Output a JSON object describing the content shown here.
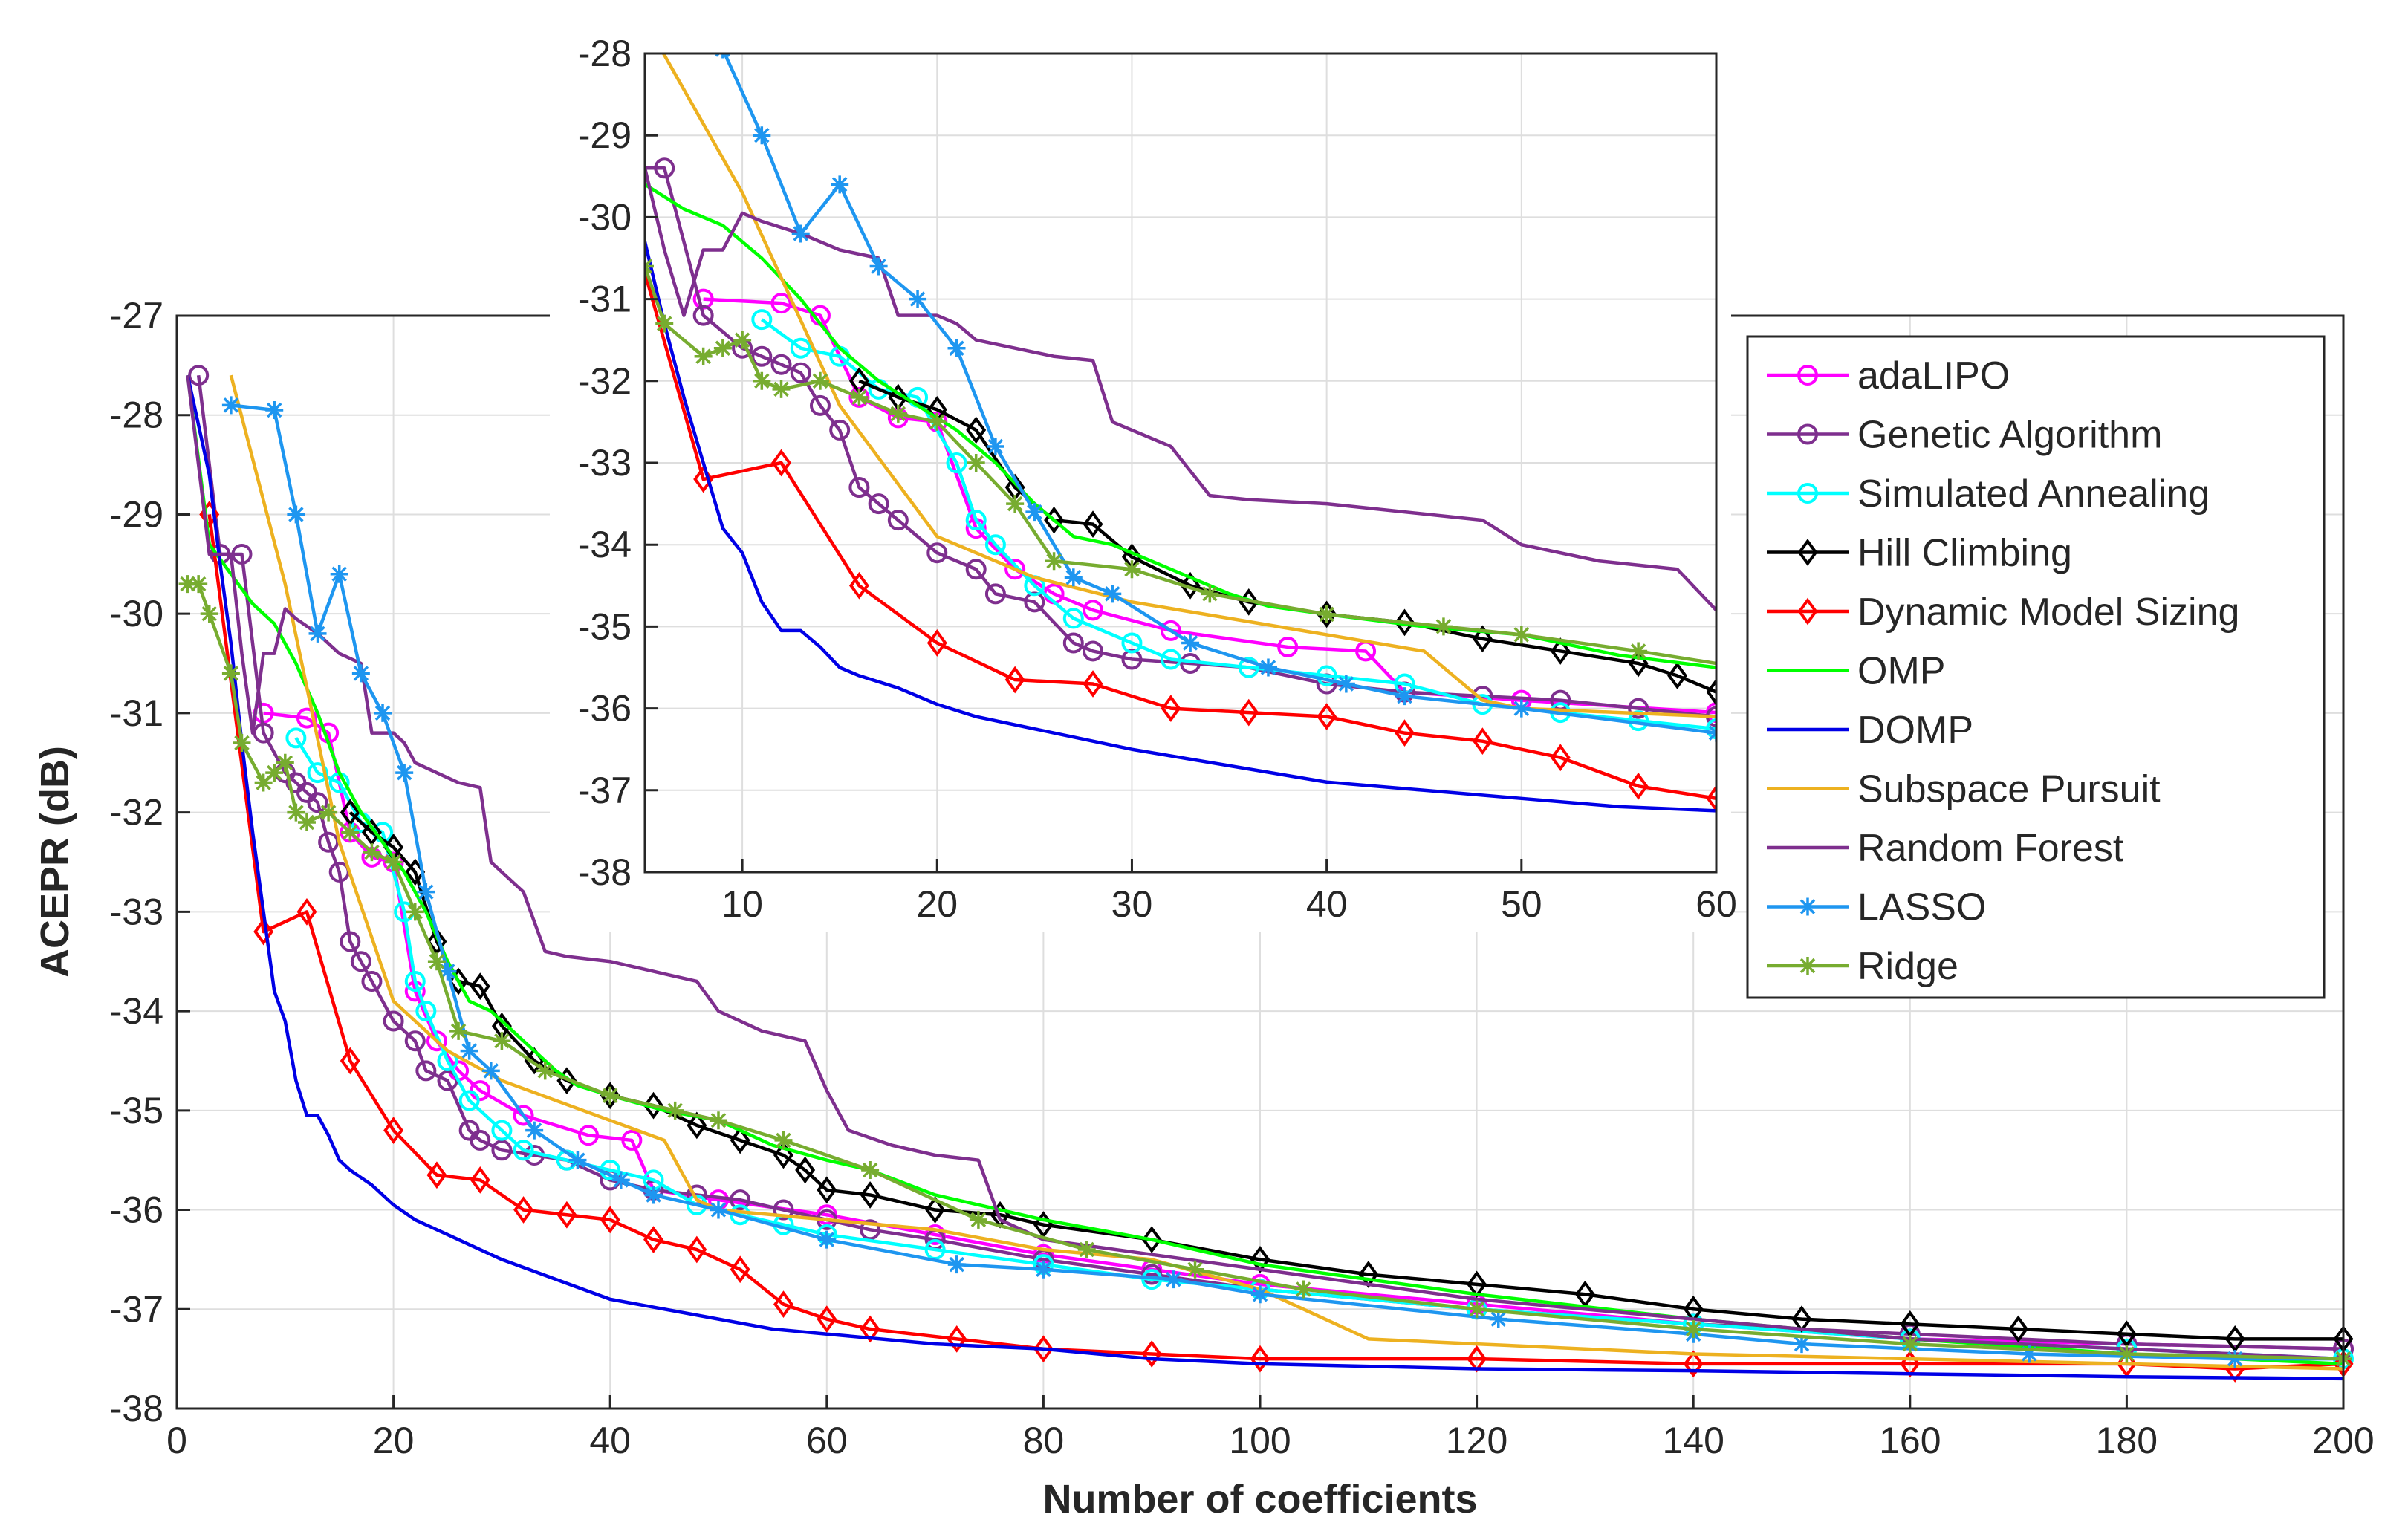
{
  "chart_data": [
    {
      "id": "main",
      "type": "line",
      "xlabel": "Number of coefficients",
      "ylabel": "ACEPR (dB)",
      "xlim": [
        0,
        200
      ],
      "ylim": [
        -38,
        -27
      ],
      "xticks": [
        0,
        20,
        40,
        60,
        80,
        100,
        120,
        140,
        160,
        180,
        200
      ],
      "yticks": [
        -27,
        -28,
        -29,
        -30,
        -31,
        -32,
        -33,
        -34,
        -35,
        -36,
        -37,
        -38
      ],
      "grid": true,
      "legend": {
        "placement": "right",
        "entries": [
          "adaLIPO",
          "Genetic Algorithm",
          "Simulated Annealing",
          "Hill Climbing",
          "Dynamic Model Sizing",
          "OMP",
          "DOMP",
          "Subspace Pursuit",
          "Random Forest",
          "LASSO",
          "Ridge"
        ]
      },
      "series": [
        {
          "name": "adaLIPO",
          "color": "#ff00ff",
          "marker": "circle",
          "x": [
            8,
            12,
            14,
            16,
            18,
            20,
            22,
            24,
            26,
            28,
            32,
            38,
            42,
            44,
            50,
            60,
            70,
            80,
            90,
            100,
            120,
            140,
            160,
            180,
            200
          ],
          "y": [
            -31.0,
            -31.05,
            -31.2,
            -32.2,
            -32.45,
            -32.5,
            -33.8,
            -34.3,
            -34.6,
            -34.8,
            -35.05,
            -35.25,
            -35.3,
            -35.8,
            -35.9,
            -36.05,
            -36.25,
            -36.45,
            -36.6,
            -36.75,
            -36.95,
            -37.15,
            -37.3,
            -37.35,
            -37.4
          ]
        },
        {
          "name": "Genetic Algorithm",
          "color": "#7e2f8e",
          "marker": "circle",
          "x": [
            2,
            4,
            6,
            8,
            10,
            11,
            12,
            13,
            14,
            15,
            16,
            17,
            18,
            20,
            22,
            23,
            25,
            27,
            28,
            30,
            33,
            36,
            40,
            44,
            48,
            52,
            56,
            60,
            64,
            70,
            80,
            90,
            100,
            120,
            140,
            160,
            180,
            200
          ],
          "y": [
            -27.6,
            -29.4,
            -29.4,
            -31.2,
            -31.6,
            -31.7,
            -31.8,
            -31.9,
            -32.3,
            -32.6,
            -33.3,
            -33.5,
            -33.7,
            -34.1,
            -34.3,
            -34.6,
            -34.7,
            -35.2,
            -35.3,
            -35.4,
            -35.45,
            -35.5,
            -35.7,
            -35.8,
            -35.85,
            -35.9,
            -36.0,
            -36.1,
            -36.2,
            -36.3,
            -36.5,
            -36.65,
            -36.8,
            -37.0,
            -37.15,
            -37.25,
            -37.35,
            -37.4
          ]
        },
        {
          "name": "Simulated Annealing",
          "color": "#00ffff",
          "marker": "circle",
          "x": [
            11,
            13,
            15,
            17,
            19,
            21,
            22,
            23,
            25,
            27,
            30,
            32,
            36,
            40,
            44,
            48,
            52,
            56,
            60,
            70,
            80,
            90,
            100,
            120,
            140,
            160,
            180,
            200
          ],
          "y": [
            -31.25,
            -31.6,
            -31.7,
            -32.1,
            -32.2,
            -33.0,
            -33.7,
            -34.0,
            -34.5,
            -34.9,
            -35.2,
            -35.4,
            -35.5,
            -35.6,
            -35.7,
            -35.95,
            -36.05,
            -36.15,
            -36.25,
            -36.4,
            -36.55,
            -36.7,
            -36.8,
            -37.0,
            -37.15,
            -37.3,
            -37.4,
            -37.5
          ]
        },
        {
          "name": "Hill Climbing",
          "color": "#000000",
          "marker": "diamond",
          "x": [
            16,
            18,
            20,
            22,
            24,
            26,
            28,
            30,
            33,
            36,
            40,
            44,
            48,
            52,
            56,
            58,
            60,
            64,
            70,
            76,
            80,
            90,
            100,
            110,
            120,
            130,
            140,
            150,
            160,
            170,
            180,
            190,
            200
          ],
          "y": [
            -32.0,
            -32.2,
            -32.35,
            -32.6,
            -33.3,
            -33.7,
            -33.75,
            -34.15,
            -34.5,
            -34.7,
            -34.85,
            -34.95,
            -35.15,
            -35.3,
            -35.45,
            -35.6,
            -35.8,
            -35.85,
            -36.0,
            -36.05,
            -36.15,
            -36.3,
            -36.5,
            -36.65,
            -36.75,
            -36.85,
            -37.0,
            -37.1,
            -37.15,
            -37.2,
            -37.25,
            -37.3,
            -37.3
          ]
        },
        {
          "name": "Dynamic Model Sizing",
          "color": "#ff0000",
          "marker": "diamond",
          "x": [
            3,
            8,
            12,
            16,
            20,
            24,
            28,
            32,
            36,
            40,
            44,
            48,
            52,
            56,
            60,
            64,
            72,
            80,
            90,
            100,
            120,
            140,
            160,
            180,
            190,
            200
          ],
          "y": [
            -29.0,
            -33.2,
            -33.0,
            -34.5,
            -35.2,
            -35.65,
            -35.7,
            -36.0,
            -36.05,
            -36.1,
            -36.3,
            -36.4,
            -36.6,
            -36.95,
            -37.1,
            -37.2,
            -37.3,
            -37.4,
            -37.45,
            -37.5,
            -37.5,
            -37.55,
            -37.55,
            -37.55,
            -37.6,
            -37.55
          ]
        },
        {
          "name": "OMP",
          "color": "#00ff00",
          "marker": "none",
          "x": [
            1,
            3,
            5,
            7,
            9,
            11,
            13,
            15,
            17,
            19,
            21,
            23,
            25,
            27,
            29,
            31,
            33,
            35,
            37,
            40,
            45,
            50,
            55,
            60,
            64,
            70,
            80,
            90,
            100,
            120,
            140,
            160,
            180,
            200
          ],
          "y": [
            -27.6,
            -29.3,
            -29.6,
            -29.9,
            -30.1,
            -30.5,
            -31.0,
            -31.6,
            -32.0,
            -32.3,
            -32.6,
            -33.0,
            -33.5,
            -33.9,
            -34.0,
            -34.2,
            -34.4,
            -34.6,
            -34.75,
            -34.85,
            -35.0,
            -35.1,
            -35.35,
            -35.5,
            -35.6,
            -35.85,
            -36.1,
            -36.3,
            -36.55,
            -36.85,
            -37.1,
            -37.3,
            -37.45,
            -37.55
          ]
        },
        {
          "name": "DOMP",
          "color": "#0000e6",
          "marker": "none",
          "x": [
            1,
            3,
            4,
            5,
            6,
            7,
            8,
            9,
            10,
            11,
            12,
            13,
            14,
            15,
            16,
            18,
            20,
            22,
            25,
            28,
            30,
            35,
            40,
            45,
            50,
            55,
            60,
            70,
            80,
            90,
            100,
            120,
            140,
            160,
            180,
            200
          ],
          "y": [
            -27.6,
            -28.6,
            -29.5,
            -30.3,
            -31.3,
            -32.2,
            -33.0,
            -33.8,
            -34.1,
            -34.7,
            -35.05,
            -35.05,
            -35.25,
            -35.5,
            -35.6,
            -35.75,
            -35.95,
            -36.1,
            -36.25,
            -36.4,
            -36.5,
            -36.7,
            -36.9,
            -37.0,
            -37.1,
            -37.2,
            -37.25,
            -37.35,
            -37.4,
            -37.5,
            -37.55,
            -37.6,
            -37.62,
            -37.65,
            -37.68,
            -37.7
          ]
        },
        {
          "name": "Subspace Pursuit",
          "color": "#edb120",
          "marker": "none",
          "x": [
            5,
            10,
            15,
            20,
            25,
            30,
            35,
            40,
            45,
            48,
            50,
            60,
            70,
            80,
            90,
            100,
            110,
            120,
            140,
            160,
            180,
            200
          ],
          "y": [
            -27.6,
            -29.7,
            -32.3,
            -33.9,
            -34.4,
            -34.7,
            -34.9,
            -35.1,
            -35.3,
            -35.9,
            -36.0,
            -36.1,
            -36.2,
            -36.4,
            -36.5,
            -36.8,
            -37.3,
            -37.35,
            -37.45,
            -37.5,
            -37.55,
            -37.6
          ]
        },
        {
          "name": "Random Forest",
          "color": "#7e2f8e",
          "marker": "none",
          "x": [
            1,
            3,
            5,
            6,
            7,
            8,
            9,
            10,
            11,
            13,
            15,
            16,
            17,
            18,
            19,
            20,
            21,
            22,
            24,
            26,
            28,
            29,
            30,
            32,
            34,
            36,
            40,
            44,
            46,
            48,
            50,
            54,
            58,
            60,
            62,
            66,
            70,
            74,
            76,
            80,
            100,
            120,
            140,
            160,
            180,
            200
          ],
          "y": [
            -27.6,
            -29.4,
            -29.4,
            -30.4,
            -31.2,
            -30.4,
            -30.4,
            -29.95,
            -30.05,
            -30.2,
            -30.4,
            -30.45,
            -30.5,
            -31.2,
            -31.2,
            -31.2,
            -31.3,
            -31.5,
            -31.6,
            -31.7,
            -31.75,
            -32.5,
            -32.6,
            -32.8,
            -33.4,
            -33.45,
            -33.5,
            -33.6,
            -33.65,
            -33.7,
            -34.0,
            -34.2,
            -34.3,
            -34.8,
            -35.2,
            -35.35,
            -35.45,
            -35.5,
            -36.1,
            -36.3,
            -36.6,
            -36.9,
            -37.1,
            -37.3,
            -37.4,
            -37.5
          ]
        },
        {
          "name": "LASSO",
          "color": "#1e96f0",
          "marker": "asterisk",
          "x": [
            5,
            9,
            11,
            13,
            15,
            17,
            19,
            21,
            23,
            25,
            27,
            29,
            33,
            37,
            41,
            44,
            50,
            60,
            72,
            80,
            92,
            100,
            122,
            140,
            150,
            171,
            190,
            200
          ],
          "y": [
            -27.9,
            -27.95,
            -29.0,
            -30.2,
            -29.6,
            -30.6,
            -31.0,
            -31.6,
            -32.8,
            -33.6,
            -34.4,
            -34.6,
            -35.2,
            -35.5,
            -35.7,
            -35.85,
            -36.0,
            -36.3,
            -36.55,
            -36.6,
            -36.7,
            -36.85,
            -37.1,
            -37.25,
            -37.35,
            -37.45,
            -37.5,
            -37.5
          ]
        },
        {
          "name": "Ridge",
          "color": "#77ac30",
          "marker": "asterisk",
          "x": [
            1,
            2,
            3,
            5,
            6,
            8,
            9,
            10,
            11,
            12,
            14,
            16,
            18,
            20,
            22,
            24,
            26,
            30,
            34,
            40,
            46,
            50,
            56,
            64,
            74,
            84,
            94,
            104,
            120,
            140,
            160,
            180,
            200
          ],
          "y": [
            -29.7,
            -29.7,
            -30.0,
            -30.6,
            -31.3,
            -31.7,
            -31.6,
            -31.5,
            -32.0,
            -32.1,
            -32.0,
            -32.2,
            -32.4,
            -32.5,
            -33.0,
            -33.5,
            -34.2,
            -34.3,
            -34.6,
            -34.85,
            -35.0,
            -35.1,
            -35.3,
            -35.6,
            -36.1,
            -36.4,
            -36.6,
            -36.8,
            -37.0,
            -37.2,
            -37.35,
            -37.45,
            -37.5
          ]
        }
      ]
    },
    {
      "id": "inset",
      "type": "line",
      "description_of": "zoomed view of main chart",
      "xlim": [
        5,
        60
      ],
      "ylim": [
        -38,
        -28
      ],
      "xticks": [
        10,
        20,
        30,
        40,
        50,
        60
      ],
      "yticks": [
        -28,
        -29,
        -30,
        -31,
        -32,
        -33,
        -34,
        -35,
        -36,
        -37,
        -38
      ],
      "grid": true
    }
  ]
}
